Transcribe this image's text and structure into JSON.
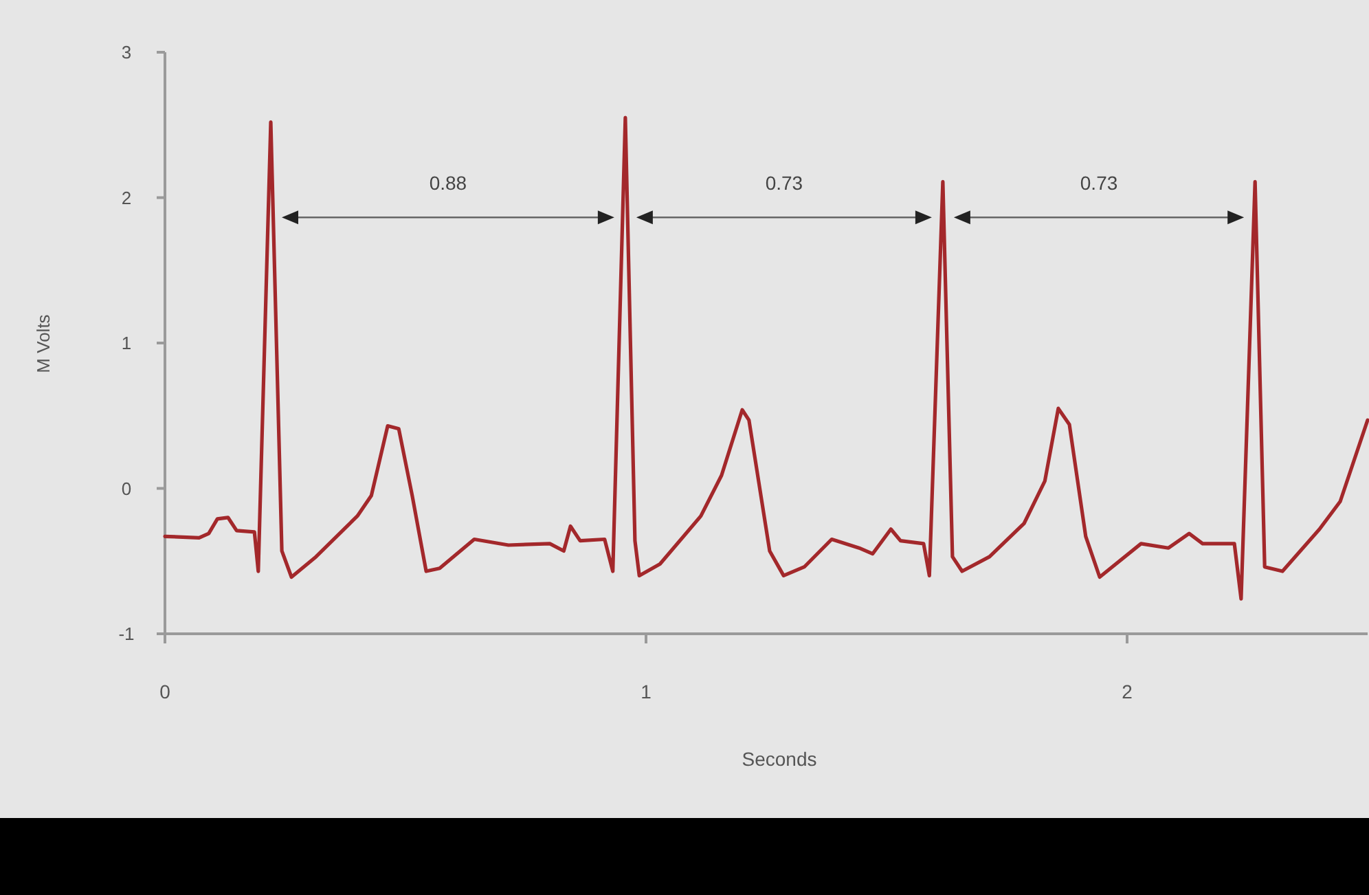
{
  "chart_data": {
    "type": "line",
    "xlabel": "Seconds",
    "ylabel": "M Volts",
    "xlim": [
      0,
      2.5
    ],
    "ylim": [
      -1,
      3
    ],
    "xticks": [
      0,
      1,
      2
    ],
    "yticks": [
      -1,
      0,
      1,
      2,
      3
    ],
    "grid": false,
    "marker": "none",
    "line_style": "solid",
    "annotations": [
      "0.88",
      "0.73",
      "0.73"
    ],
    "series": [
      {
        "color": "#a3282b",
        "x": [
          0,
          0.071,
          0.091,
          0.109,
          0.131,
          0.149,
          0.186,
          0.194,
          0.22,
          0.243,
          0.263,
          0.314,
          0.4,
          0.429,
          0.463,
          0.486,
          0.514,
          0.543,
          0.571,
          0.643,
          0.714,
          0.8,
          0.829,
          0.843,
          0.863,
          0.914,
          0.931,
          0.957,
          0.977,
          0.986,
          1.029,
          1.114,
          1.157,
          1.2,
          1.214,
          1.257,
          1.286,
          1.329,
          1.386,
          1.443,
          1.471,
          1.509,
          1.529,
          1.577,
          1.589,
          1.617,
          1.637,
          1.657,
          1.714,
          1.786,
          1.829,
          1.857,
          1.88,
          1.914,
          1.943,
          2.029,
          2.086,
          2.129,
          2.157,
          2.223,
          2.237,
          2.266,
          2.286,
          2.323,
          2.4,
          2.443,
          2.5
        ],
        "values": [
          -0.33,
          -0.34,
          -0.31,
          -0.21,
          -0.2,
          -0.29,
          -0.3,
          -0.57,
          2.52,
          -0.43,
          -0.61,
          -0.47,
          -0.19,
          -0.05,
          0.43,
          0.41,
          -0.05,
          -0.57,
          -0.55,
          -0.35,
          -0.39,
          -0.38,
          -0.43,
          -0.26,
          -0.36,
          -0.35,
          -0.57,
          2.55,
          -0.36,
          -0.6,
          -0.52,
          -0.19,
          0.09,
          0.54,
          0.47,
          -0.43,
          -0.6,
          -0.54,
          -0.35,
          -0.41,
          -0.45,
          -0.28,
          -0.36,
          -0.38,
          -0.6,
          2.11,
          -0.47,
          -0.57,
          -0.47,
          -0.24,
          0.05,
          0.55,
          0.44,
          -0.33,
          -0.61,
          -0.38,
          -0.41,
          -0.31,
          -0.38,
          -0.38,
          -0.76,
          2.11,
          -0.54,
          -0.57,
          -0.28,
          -0.09,
          0.47
        ]
      }
    ]
  }
}
